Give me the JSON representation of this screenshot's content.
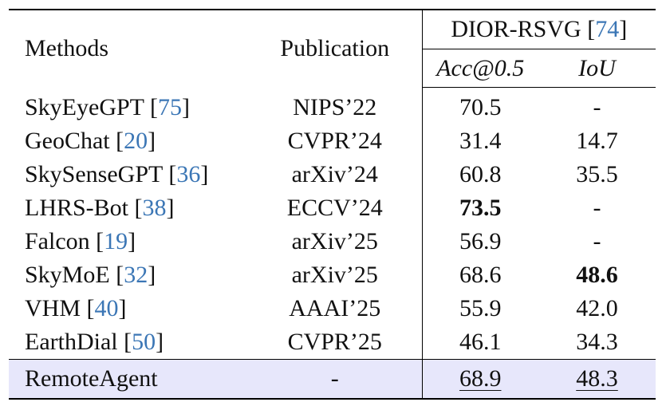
{
  "header": {
    "methods": "Methods",
    "publication": "Publication",
    "dataset": "DIOR-RSVG",
    "dataset_ref": "74",
    "metric_acc": "Acc@0.5",
    "metric_iou": "IoU"
  },
  "rows": [
    {
      "method": "SkyEyeGPT",
      "ref": "75",
      "publication": "NIPS’22",
      "acc": "70.5",
      "iou": "-"
    },
    {
      "method": "GeoChat",
      "ref": "20",
      "publication": "CVPR’24",
      "acc": "31.4",
      "iou": "14.7"
    },
    {
      "method": "SkySenseGPT",
      "ref": "36",
      "publication": "arXiv’24",
      "acc": "60.8",
      "iou": "35.5"
    },
    {
      "method": "LHRS-Bot",
      "ref": "38",
      "publication": "ECCV’24",
      "acc": "73.5",
      "iou": "-"
    },
    {
      "method": "Falcon",
      "ref": "19",
      "publication": "arXiv’25",
      "acc": "56.9",
      "iou": "-"
    },
    {
      "method": "SkyMoE",
      "ref": "32",
      "publication": "arXiv’25",
      "acc": "68.6",
      "iou": "48.6"
    },
    {
      "method": "VHM",
      "ref": "40",
      "publication": "AAAI’25",
      "acc": "55.9",
      "iou": "42.0"
    },
    {
      "method": "EarthDial",
      "ref": "50",
      "publication": "CVPR’25",
      "acc": "46.1",
      "iou": "34.3"
    }
  ],
  "ours": {
    "method": "RemoteAgent",
    "publication": "-",
    "acc": "68.9",
    "iou": "48.3"
  },
  "colors": {
    "reference_link": "#3b76b5",
    "highlight_row": "#e7e7fb"
  }
}
